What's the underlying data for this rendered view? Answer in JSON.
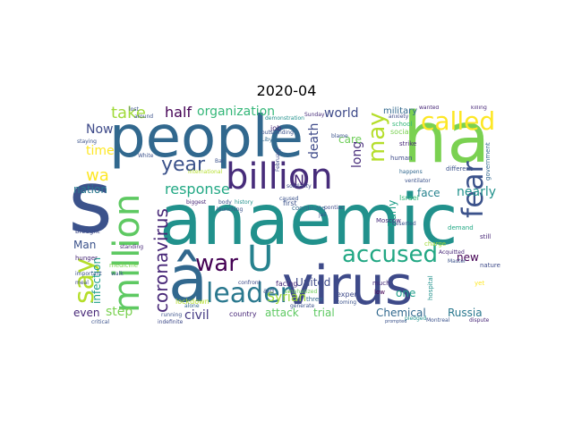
{
  "title": "2020-04",
  "words": [
    {
      "text": "people",
      "color": "#31688e"
    },
    {
      "text": "ha",
      "color": "#7ad151"
    },
    {
      "text": "anaemic",
      "color": "#21918c"
    },
    {
      "text": "s",
      "color": "#3b528b"
    },
    {
      "text": "virus",
      "color": "#3e4a89"
    },
    {
      "text": "â",
      "color": "#31688e"
    },
    {
      "text": "billion",
      "color": "#472c7a"
    },
    {
      "text": "million",
      "color": "#5ec962"
    },
    {
      "text": "called",
      "color": "#fde725"
    },
    {
      "text": "leader",
      "color": "#2a788e"
    },
    {
      "text": "accused",
      "color": "#22a884"
    },
    {
      "text": "fear",
      "color": "#3b528b"
    },
    {
      "text": "war",
      "color": "#440154"
    },
    {
      "text": "U",
      "color": "#26828e"
    },
    {
      "text": "year",
      "color": "#3b528b"
    },
    {
      "text": "may",
      "color": "#b5de2b"
    },
    {
      "text": "coronavirus",
      "color": "#482878"
    },
    {
      "text": "say",
      "color": "#b5de2b"
    },
    {
      "text": "response",
      "color": "#22a884"
    },
    {
      "text": "take",
      "color": "#a0da39"
    },
    {
      "text": "wa",
      "color": "#fde725"
    },
    {
      "text": "half",
      "color": "#440154"
    },
    {
      "text": "organization",
      "color": "#35b779"
    },
    {
      "text": "world",
      "color": "#3e4a89"
    },
    {
      "text": "military",
      "color": "#31688e"
    },
    {
      "text": "death",
      "color": "#3e4a89"
    },
    {
      "text": "long",
      "color": "#472c7a"
    },
    {
      "text": "care",
      "color": "#6ece58"
    },
    {
      "text": "N",
      "color": "#482878"
    },
    {
      "text": "time",
      "color": "#fde725"
    },
    {
      "text": "Now",
      "color": "#3e4a89"
    },
    {
      "text": "nation",
      "color": "#2a788e"
    },
    {
      "text": "infection",
      "color": "#1f9e89"
    },
    {
      "text": "Man",
      "color": "#3b528b"
    },
    {
      "text": "step",
      "color": "#7ad151"
    },
    {
      "text": "even",
      "color": "#482878"
    },
    {
      "text": "civil",
      "color": "#443983"
    },
    {
      "text": "Syrian",
      "color": "#a0da39"
    },
    {
      "text": "United",
      "color": "#3e4a89"
    },
    {
      "text": "attack",
      "color": "#5ec962"
    },
    {
      "text": "trial",
      "color": "#5ec962"
    },
    {
      "text": "Chemical",
      "color": "#31688e"
    },
    {
      "text": "Russia",
      "color": "#2a788e"
    },
    {
      "text": "face",
      "color": "#26828e"
    },
    {
      "text": "nearly",
      "color": "#21918c"
    },
    {
      "text": "new",
      "color": "#440154"
    },
    {
      "text": "one",
      "color": "#1f9e89"
    },
    {
      "text": "Early",
      "color": "#1f9e89"
    },
    {
      "text": "Israel",
      "color": "#35b779"
    },
    {
      "text": "lockdown",
      "color": "#b5de2b"
    },
    {
      "text": "facing",
      "color": "#482878"
    },
    {
      "text": "aid",
      "color": "#3b528b"
    },
    {
      "text": "first",
      "color": "#3b528b"
    },
    {
      "text": "expert",
      "color": "#3e4a89"
    },
    {
      "text": "country",
      "color": "#482878"
    },
    {
      "text": "social",
      "color": "#7ad151"
    },
    {
      "text": "human",
      "color": "#3e4a89"
    },
    {
      "text": "job",
      "color": "#482878"
    },
    {
      "text": "school",
      "color": "#35b779"
    },
    {
      "text": "strike",
      "color": "#482878"
    },
    {
      "text": "different",
      "color": "#3b528b"
    },
    {
      "text": "government",
      "color": "#31688e"
    },
    {
      "text": "Moscow",
      "color": "#472c7a"
    },
    {
      "text": "demand",
      "color": "#22a884"
    },
    {
      "text": "still",
      "color": "#482878"
    },
    {
      "text": "nature",
      "color": "#3e4a89"
    },
    {
      "text": "hospital",
      "color": "#21918c"
    },
    {
      "text": "yet",
      "color": "#fde725"
    },
    {
      "text": "much",
      "color": "#472c7a"
    },
    {
      "text": "low",
      "color": "#440154"
    },
    {
      "text": "three",
      "color": "#31688e"
    },
    {
      "text": "coming",
      "color": "#3b528b"
    },
    {
      "text": "Montreal",
      "color": "#3b528b"
    },
    {
      "text": "dispute",
      "color": "#482878"
    },
    {
      "text": "medicine",
      "color": "#7ad151"
    },
    {
      "text": "brought",
      "color": "#3e4a89"
    },
    {
      "text": "hunger",
      "color": "#482878"
    },
    {
      "text": "important",
      "color": "#3b528b"
    },
    {
      "text": "meal",
      "color": "#3e4a89"
    },
    {
      "text": "running",
      "color": "#3b528b"
    },
    {
      "text": "indefinite",
      "color": "#3e4a89"
    },
    {
      "text": "alone",
      "color": "#31688e"
    },
    {
      "text": "confront",
      "color": "#3e4a89"
    },
    {
      "text": "coordinate",
      "color": "#31688e"
    },
    {
      "text": "jail",
      "color": "#3b528b"
    },
    {
      "text": "caused",
      "color": "#3b528b"
    },
    {
      "text": "emphasized",
      "color": "#6ece58"
    },
    {
      "text": "generate",
      "color": "#3b528b"
    },
    {
      "text": "pontiac",
      "color": "#3e4a89"
    },
    {
      "text": "anxiety",
      "color": "#3e4a89"
    },
    {
      "text": "February",
      "color": "#3e4a89"
    },
    {
      "text": "Libyan",
      "color": "#31688e"
    },
    {
      "text": "international",
      "color": "#b5de2b"
    },
    {
      "text": "biggest",
      "color": "#482878"
    },
    {
      "text": "body",
      "color": "#3b528b"
    },
    {
      "text": "history",
      "color": "#21918c"
    },
    {
      "text": "launching",
      "color": "#3b528b"
    },
    {
      "text": "standing",
      "color": "#482878"
    },
    {
      "text": "White",
      "color": "#3b528b"
    },
    {
      "text": "Sunday",
      "color": "#472c7a"
    },
    {
      "text": "blame",
      "color": "#3b528b"
    },
    {
      "text": "wanted",
      "color": "#482878"
    },
    {
      "text": "killing",
      "color": "#482878"
    },
    {
      "text": "charge",
      "color": "#a0da39"
    },
    {
      "text": "Acquitted",
      "color": "#482878"
    },
    {
      "text": "staying",
      "color": "#3b528b"
    },
    {
      "text": "around",
      "color": "#3b528b"
    },
    {
      "text": "lost",
      "color": "#3b528b"
    },
    {
      "text": "outstanding",
      "color": "#3b528b"
    },
    {
      "text": "ventilator",
      "color": "#3b528b"
    },
    {
      "text": "happens",
      "color": "#31688e"
    },
    {
      "text": "Master",
      "color": "#3b528b"
    },
    {
      "text": "solidarity",
      "color": "#3e4a89"
    },
    {
      "text": "demonstration",
      "color": "#21918c"
    },
    {
      "text": "deserted",
      "color": "#3b528b"
    },
    {
      "text": "pledged",
      "color": "#21918c"
    },
    {
      "text": "prompted",
      "color": "#3b528b"
    },
    {
      "text": "critical",
      "color": "#3b528b"
    },
    {
      "text": "walk",
      "color": "#3b528b"
    },
    {
      "text": "Bar",
      "color": "#3b528b"
    }
  ]
}
